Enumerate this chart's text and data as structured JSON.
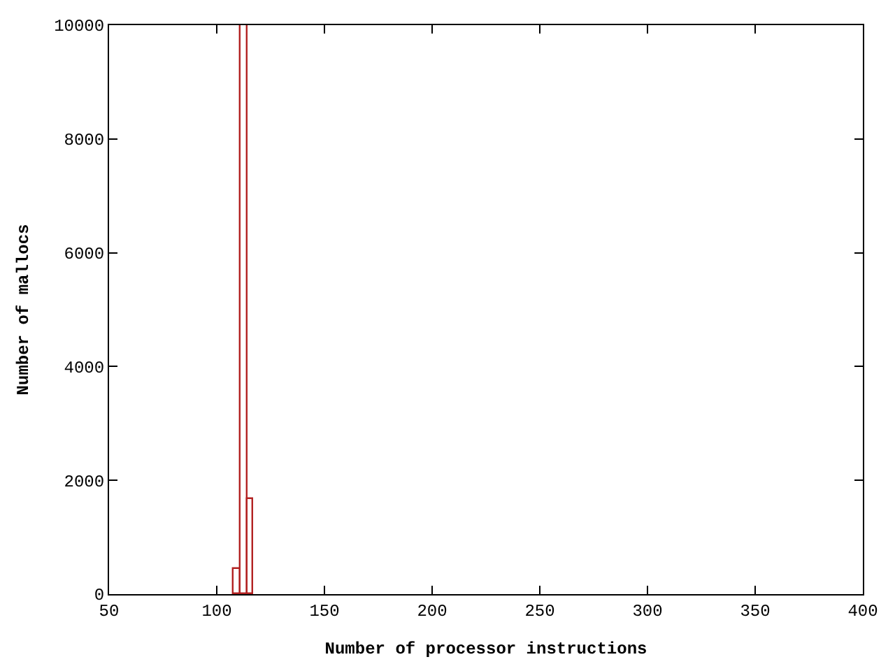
{
  "chart_data": {
    "type": "histogram",
    "xlabel": "Number of processor instructions",
    "ylabel": "Number of mallocs",
    "bins": [
      108,
      111,
      114,
      117
    ],
    "values": [
      450,
      10000,
      1660
    ],
    "color": "#b22222",
    "xlim": [
      50,
      400
    ],
    "xticks": [
      50,
      100,
      150,
      200,
      250,
      300,
      350,
      400
    ],
    "ylim": [
      0,
      10000
    ],
    "yticks": [
      0,
      2000,
      4000,
      6000,
      8000,
      10000
    ]
  }
}
